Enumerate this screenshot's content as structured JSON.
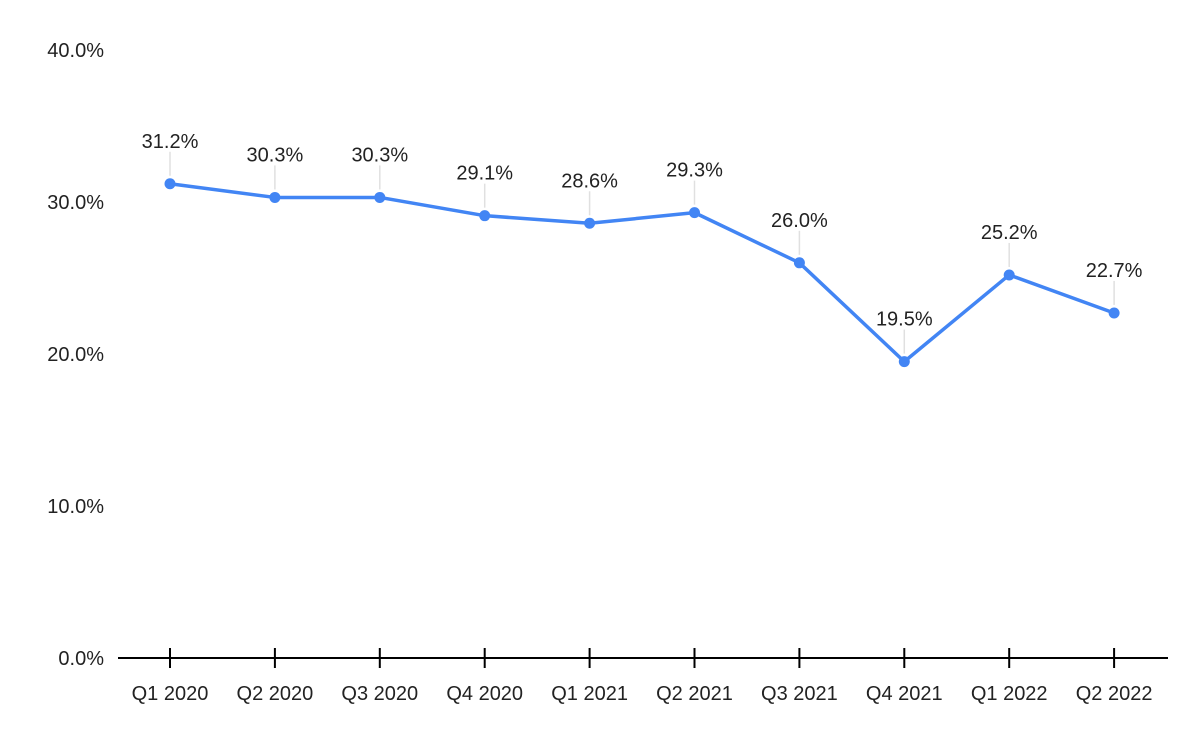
{
  "chart_data": {
    "type": "line",
    "title": "",
    "xlabel": "",
    "ylabel": "",
    "categories": [
      "Q1 2020",
      "Q2 2020",
      "Q3 2020",
      "Q4 2020",
      "Q1 2021",
      "Q2 2021",
      "Q3 2021",
      "Q4 2021",
      "Q1 2022",
      "Q2 2022"
    ],
    "series": [
      {
        "values": [
          31.2,
          30.3,
          30.3,
          29.1,
          28.6,
          29.3,
          26.0,
          19.5,
          25.2,
          22.7
        ],
        "labels": [
          "31.2%",
          "30.3%",
          "30.3%",
          "29.1%",
          "28.6%",
          "29.3%",
          "26.0%",
          "19.5%",
          "25.2%",
          "22.7%"
        ],
        "color": "#4285f4"
      }
    ],
    "ylim": [
      0,
      40
    ],
    "yticks": [
      0,
      10,
      20,
      30,
      40
    ],
    "ytick_labels": [
      "0.0%",
      "10.0%",
      "20.0%",
      "30.0%",
      "40.0%"
    ],
    "grid": false,
    "legend": "none",
    "axis_color": "#000000",
    "leader_line_color": "#e0e0e0"
  }
}
